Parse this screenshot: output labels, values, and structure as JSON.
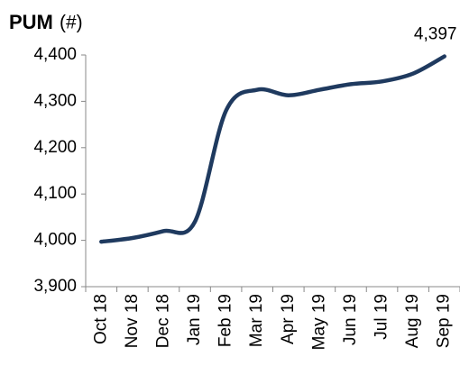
{
  "chart_data": {
    "type": "line",
    "title": "PUM",
    "title_unit": "(#)",
    "categories": [
      "Oct 18",
      "Nov 18",
      "Dec 18",
      "Jan 19",
      "Feb 19",
      "Mar 19",
      "Apr 19",
      "May 19",
      "Jun 19",
      "Jul 19",
      "Aug 19",
      "Sep 19"
    ],
    "series": [
      {
        "color": "#1f3a5f",
        "values": [
          3997,
          4005,
          4020,
          4040,
          4280,
          4325,
          4313,
          4325,
          4337,
          4343,
          4360,
          4397
        ]
      }
    ],
    "value_labels": [
      null,
      null,
      null,
      null,
      null,
      null,
      null,
      null,
      null,
      null,
      null,
      "4,397"
    ],
    "ylim": [
      3900,
      4400
    ],
    "yticks": [
      {
        "value": 3900,
        "label": "3,900"
      },
      {
        "value": 4000,
        "label": "4,000"
      },
      {
        "value": 4100,
        "label": "4,100"
      },
      {
        "value": 4200,
        "label": "4,200"
      },
      {
        "value": 4300,
        "label": "4,300"
      },
      {
        "value": 4400,
        "label": "4,400"
      }
    ],
    "grid": false
  }
}
